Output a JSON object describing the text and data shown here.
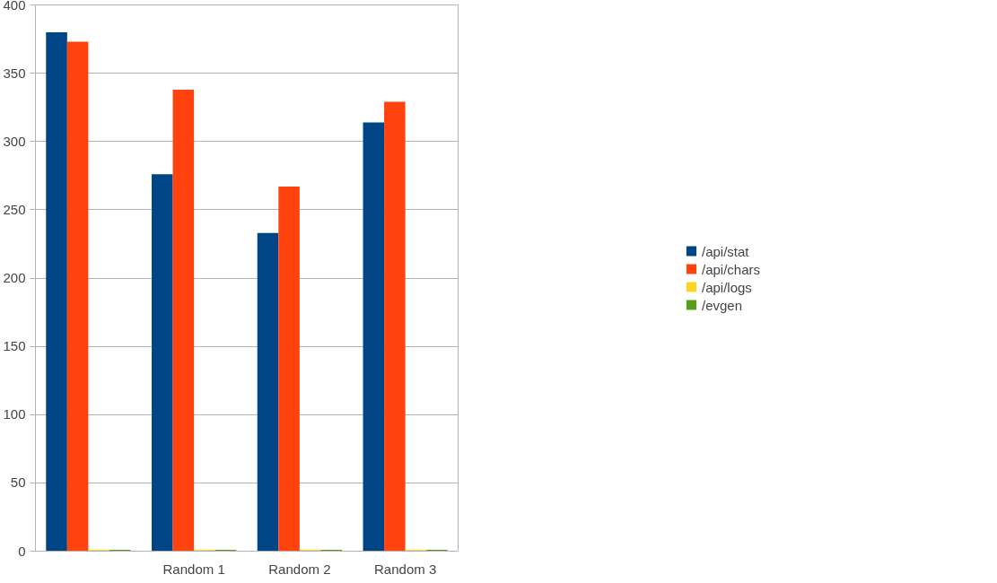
{
  "chart_data": {
    "type": "bar",
    "categories": [
      null,
      "Random 1",
      "Random 2",
      "Random 3"
    ],
    "series": [
      {
        "name": "/api/stat",
        "color": "#004586",
        "values": [
          380,
          276,
          233,
          314
        ]
      },
      {
        "name": "/api/chars",
        "color": "#ff420e",
        "values": [
          373,
          338,
          267,
          329
        ]
      },
      {
        "name": "/api/logs",
        "color": "#ffd320",
        "values": [
          1,
          1,
          1,
          1
        ]
      },
      {
        "name": "/evgen",
        "color": "#579d1c",
        "values": [
          1,
          1,
          1,
          1
        ]
      }
    ],
    "ylim": [
      0,
      400
    ],
    "yticks": [
      0,
      50,
      100,
      150,
      200,
      250,
      300,
      350,
      400
    ],
    "grid": "y",
    "legend": "right"
  }
}
